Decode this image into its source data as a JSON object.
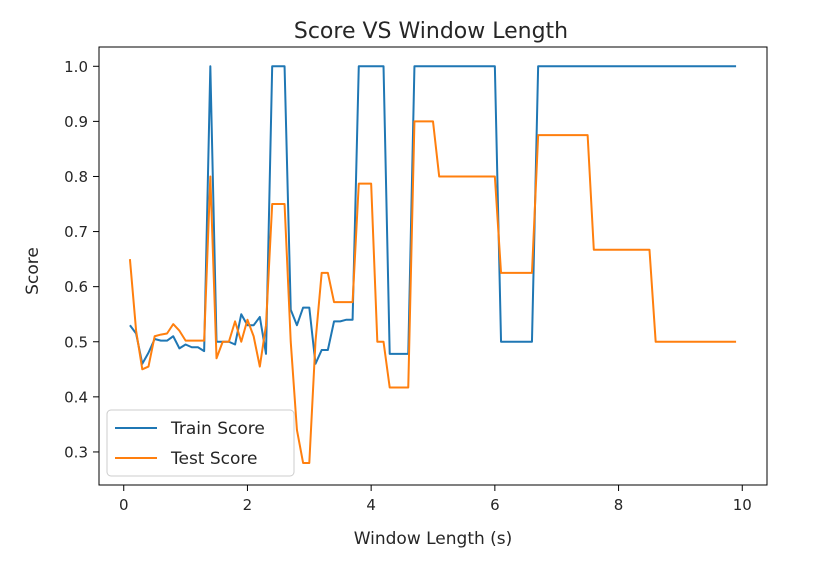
{
  "chart_data": {
    "type": "line",
    "title": "Score VS Window Length",
    "xlabel": "Window Length (s)",
    "ylabel": "Score",
    "xlim": [
      -0.4,
      10.4
    ],
    "ylim": [
      0.24,
      1.035
    ],
    "xticks": [
      0,
      2,
      4,
      6,
      8,
      10
    ],
    "yticks": [
      0.3,
      0.4,
      0.5,
      0.6,
      0.7,
      0.8,
      0.9,
      1.0
    ],
    "xtick_labels": [
      "0",
      "2",
      "4",
      "6",
      "8",
      "10"
    ],
    "ytick_labels": [
      "0.3",
      "0.4",
      "0.5",
      "0.6",
      "0.7",
      "0.8",
      "0.9",
      "1.0"
    ],
    "grid": false,
    "legend_position": "lower-left",
    "series": [
      {
        "name": "Train Score",
        "color": "#1f77b4",
        "points": [
          [
            0.1,
            0.53
          ],
          [
            0.2,
            0.515
          ],
          [
            0.3,
            0.46
          ],
          [
            0.4,
            0.48
          ],
          [
            0.5,
            0.505
          ],
          [
            0.6,
            0.502
          ],
          [
            0.7,
            0.502
          ],
          [
            0.8,
            0.51
          ],
          [
            0.9,
            0.488
          ],
          [
            1.0,
            0.495
          ],
          [
            1.1,
            0.49
          ],
          [
            1.2,
            0.49
          ],
          [
            1.3,
            0.483
          ],
          [
            1.4,
            1.0
          ],
          [
            1.5,
            0.5
          ],
          [
            1.6,
            0.5
          ],
          [
            1.7,
            0.5
          ],
          [
            1.8,
            0.495
          ],
          [
            1.9,
            0.55
          ],
          [
            2.0,
            0.53
          ],
          [
            2.1,
            0.53
          ],
          [
            2.2,
            0.545
          ],
          [
            2.3,
            0.478
          ],
          [
            2.4,
            1.0
          ],
          [
            2.5,
            1.0
          ],
          [
            2.6,
            1.0
          ],
          [
            2.7,
            0.558
          ],
          [
            2.8,
            0.53
          ],
          [
            2.9,
            0.562
          ],
          [
            3.0,
            0.562
          ],
          [
            3.1,
            0.46
          ],
          [
            3.2,
            0.485
          ],
          [
            3.3,
            0.485
          ],
          [
            3.4,
            0.537
          ],
          [
            3.5,
            0.537
          ],
          [
            3.6,
            0.54
          ],
          [
            3.7,
            0.54
          ],
          [
            3.8,
            1.0
          ],
          [
            3.9,
            1.0
          ],
          [
            4.0,
            1.0
          ],
          [
            4.1,
            1.0
          ],
          [
            4.2,
            1.0
          ],
          [
            4.3,
            0.478
          ],
          [
            4.4,
            0.478
          ],
          [
            4.5,
            0.478
          ],
          [
            4.6,
            0.478
          ],
          [
            4.7,
            1.0
          ],
          [
            4.8,
            1.0
          ],
          [
            4.9,
            1.0
          ],
          [
            5.0,
            1.0
          ],
          [
            5.1,
            1.0
          ],
          [
            5.2,
            1.0
          ],
          [
            5.3,
            1.0
          ],
          [
            5.4,
            1.0
          ],
          [
            5.5,
            1.0
          ],
          [
            5.6,
            1.0
          ],
          [
            5.7,
            1.0
          ],
          [
            5.8,
            1.0
          ],
          [
            5.9,
            1.0
          ],
          [
            6.0,
            1.0
          ],
          [
            6.1,
            0.5
          ],
          [
            6.2,
            0.5
          ],
          [
            6.3,
            0.5
          ],
          [
            6.4,
            0.5
          ],
          [
            6.5,
            0.5
          ],
          [
            6.6,
            0.5
          ],
          [
            6.7,
            1.0
          ],
          [
            6.8,
            1.0
          ],
          [
            6.9,
            1.0
          ],
          [
            7.0,
            1.0
          ],
          [
            7.5,
            1.0
          ],
          [
            8.0,
            1.0
          ],
          [
            8.5,
            1.0
          ],
          [
            9.0,
            1.0
          ],
          [
            9.5,
            1.0
          ],
          [
            9.9,
            1.0
          ]
        ]
      },
      {
        "name": "Test Score",
        "color": "#ff7f0e",
        "points": [
          [
            0.1,
            0.65
          ],
          [
            0.2,
            0.52
          ],
          [
            0.3,
            0.45
          ],
          [
            0.4,
            0.455
          ],
          [
            0.5,
            0.51
          ],
          [
            0.6,
            0.513
          ],
          [
            0.7,
            0.515
          ],
          [
            0.8,
            0.532
          ],
          [
            0.9,
            0.52
          ],
          [
            1.0,
            0.502
          ],
          [
            1.1,
            0.502
          ],
          [
            1.2,
            0.502
          ],
          [
            1.3,
            0.502
          ],
          [
            1.4,
            0.8
          ],
          [
            1.5,
            0.47
          ],
          [
            1.6,
            0.5
          ],
          [
            1.7,
            0.5
          ],
          [
            1.8,
            0.537
          ],
          [
            1.9,
            0.5
          ],
          [
            2.0,
            0.54
          ],
          [
            2.1,
            0.51
          ],
          [
            2.2,
            0.455
          ],
          [
            2.3,
            0.53
          ],
          [
            2.4,
            0.75
          ],
          [
            2.5,
            0.75
          ],
          [
            2.6,
            0.75
          ],
          [
            2.7,
            0.5
          ],
          [
            2.8,
            0.34
          ],
          [
            2.9,
            0.28
          ],
          [
            3.0,
            0.28
          ],
          [
            3.1,
            0.5
          ],
          [
            3.2,
            0.625
          ],
          [
            3.3,
            0.625
          ],
          [
            3.4,
            0.572
          ],
          [
            3.5,
            0.572
          ],
          [
            3.6,
            0.572
          ],
          [
            3.7,
            0.572
          ],
          [
            3.8,
            0.787
          ],
          [
            3.9,
            0.787
          ],
          [
            4.0,
            0.787
          ],
          [
            4.1,
            0.5
          ],
          [
            4.2,
            0.5
          ],
          [
            4.3,
            0.417
          ],
          [
            4.4,
            0.417
          ],
          [
            4.5,
            0.417
          ],
          [
            4.6,
            0.417
          ],
          [
            4.7,
            0.9
          ],
          [
            4.8,
            0.9
          ],
          [
            4.9,
            0.9
          ],
          [
            5.0,
            0.9
          ],
          [
            5.1,
            0.8
          ],
          [
            5.2,
            0.8
          ],
          [
            5.4,
            0.8
          ],
          [
            5.6,
            0.8
          ],
          [
            5.8,
            0.8
          ],
          [
            6.0,
            0.8
          ],
          [
            6.1,
            0.625
          ],
          [
            6.2,
            0.625
          ],
          [
            6.4,
            0.625
          ],
          [
            6.6,
            0.625
          ],
          [
            6.7,
            0.875
          ],
          [
            6.8,
            0.875
          ],
          [
            7.0,
            0.875
          ],
          [
            7.2,
            0.875
          ],
          [
            7.4,
            0.875
          ],
          [
            7.5,
            0.875
          ],
          [
            7.6,
            0.667
          ],
          [
            7.8,
            0.667
          ],
          [
            8.0,
            0.667
          ],
          [
            8.2,
            0.667
          ],
          [
            8.4,
            0.667
          ],
          [
            8.5,
            0.667
          ],
          [
            8.6,
            0.5
          ],
          [
            8.8,
            0.5
          ],
          [
            9.0,
            0.5
          ],
          [
            9.2,
            0.5
          ],
          [
            9.4,
            0.5
          ],
          [
            9.6,
            0.5
          ],
          [
            9.8,
            0.5
          ],
          [
            9.9,
            0.5
          ]
        ]
      }
    ]
  }
}
